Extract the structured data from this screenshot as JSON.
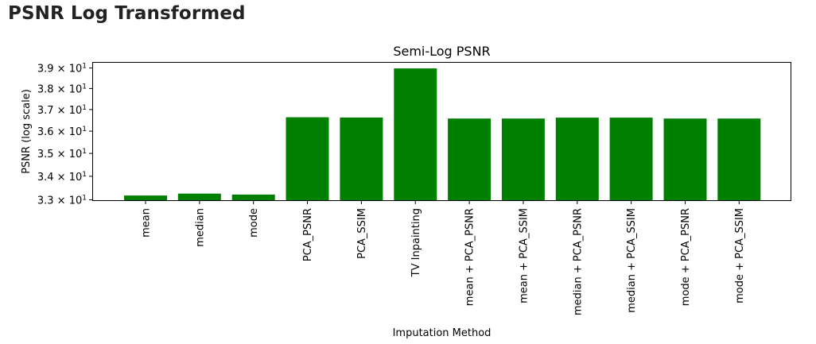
{
  "page": {
    "heading": "PSNR Log Transformed"
  },
  "chart_data": {
    "type": "bar",
    "title": "Semi-Log PSNR",
    "xlabel": "Imputation Method",
    "ylabel": "PSNR (log scale)",
    "yscale": "log",
    "ylim": [
      32.95,
      39.3
    ],
    "bar_color": "#008000",
    "yticks": [
      {
        "value": 33,
        "mantissa": "3.3",
        "base": "10",
        "exp": "1"
      },
      {
        "value": 34,
        "mantissa": "3.4",
        "base": "10",
        "exp": "1"
      },
      {
        "value": 35,
        "mantissa": "3.5",
        "base": "10",
        "exp": "1"
      },
      {
        "value": 36,
        "mantissa": "3.6",
        "base": "10",
        "exp": "1"
      },
      {
        "value": 37,
        "mantissa": "3.7",
        "base": "10",
        "exp": "1"
      },
      {
        "value": 38,
        "mantissa": "3.8",
        "base": "10",
        "exp": "1"
      },
      {
        "value": 39,
        "mantissa": "3.9",
        "base": "10",
        "exp": "1"
      }
    ],
    "categories": [
      "mean",
      "median",
      "mode",
      "PCA_PSNR",
      "PCA_SSIM",
      "TV Inpainting",
      "mean + PCA_PSNR",
      "mean + PCA_SSIM",
      "median + PCA_PSNR",
      "median + PCA_SSIM",
      "mode + PCA_PSNR",
      "mode + PCA_SSIM"
    ],
    "values": [
      33.18,
      33.26,
      33.22,
      36.64,
      36.63,
      38.98,
      36.58,
      36.58,
      36.62,
      36.62,
      36.58,
      36.58
    ],
    "grid": false,
    "legend": "none"
  }
}
